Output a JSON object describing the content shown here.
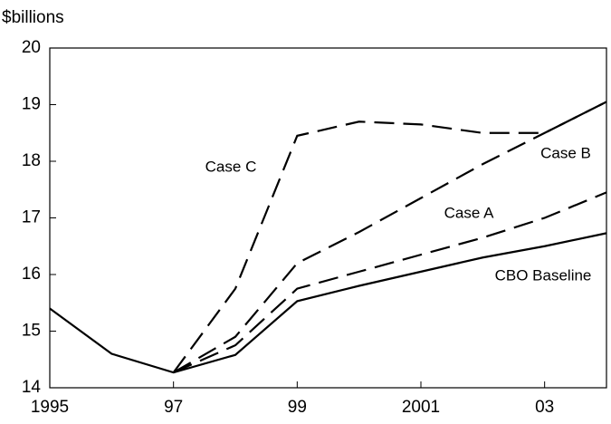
{
  "chart_data": {
    "type": "line",
    "y_label": "$billions",
    "x": [
      1995,
      1996,
      1997,
      1998,
      1999,
      2000,
      2001,
      2002,
      2003,
      2004
    ],
    "series": [
      {
        "name": "CBO Baseline",
        "color": "#000000",
        "dashed": false,
        "values": [
          15.4,
          14.6,
          14.27,
          14.58,
          15.53,
          15.8,
          16.05,
          16.3,
          16.5,
          16.73
        ]
      },
      {
        "name": "Case A",
        "color": "#000000",
        "dashed": true,
        "values": [
          null,
          null,
          14.27,
          14.75,
          15.75,
          16.05,
          16.35,
          16.65,
          17.0,
          17.45
        ]
      },
      {
        "name": "Case B",
        "color": "#000000",
        "dashed": true,
        "values": [
          null,
          null,
          14.27,
          14.9,
          16.2,
          16.75,
          17.35,
          17.95,
          18.5,
          19.05
        ]
      },
      {
        "name": "Case C",
        "color": "#000000",
        "dashed": true,
        "values": [
          null,
          null,
          14.27,
          15.75,
          18.45,
          18.7,
          18.65,
          18.5,
          18.5,
          19.05
        ]
      }
    ],
    "xlim": [
      1995,
      2004
    ],
    "xticks": [
      {
        "value": 1995,
        "label": "1995"
      },
      {
        "value": 1997,
        "label": "97"
      },
      {
        "value": 1999,
        "label": "99"
      },
      {
        "value": 2001,
        "label": "2001"
      },
      {
        "value": 2003,
        "label": "03"
      }
    ],
    "ylim": [
      14,
      20
    ],
    "yticks": [
      14,
      15,
      16,
      17,
      18,
      19,
      20
    ],
    "grid": false
  }
}
